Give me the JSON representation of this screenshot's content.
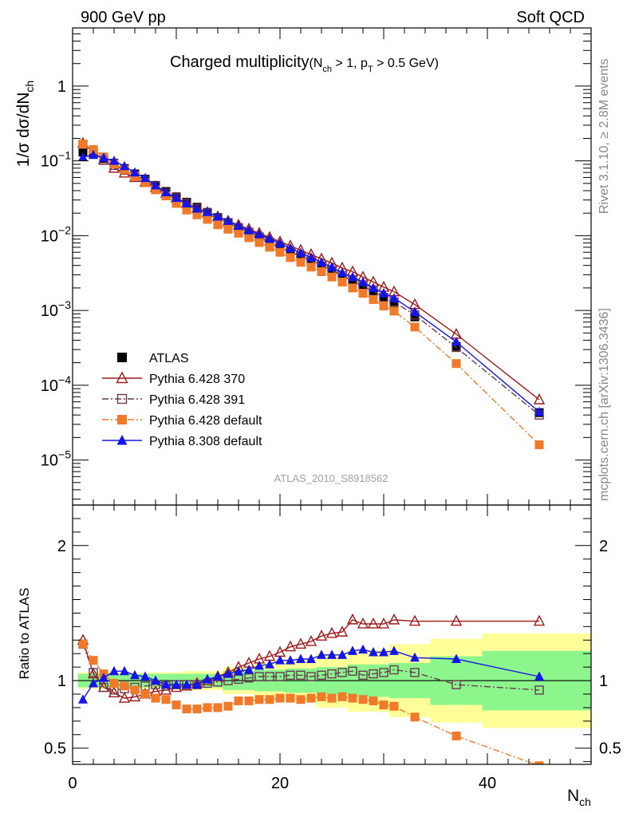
{
  "header": {
    "left": "900 GeV pp",
    "right": "Soft QCD"
  },
  "side": {
    "rivet": "Rivet 3.1.10, ≥ 2.8M events",
    "source": "mcplots.cern.ch [arXiv:1306.3436]"
  },
  "watermark": "ATLAS_2010_S8918562",
  "title": {
    "main": "Charged multiplicity",
    "cond_open": "(N",
    "cond_sub1": "ch",
    "cond_mid": " > 1, p",
    "cond_sub2": "T",
    "cond_close": " > 0.5 GeV)"
  },
  "ylabel": {
    "pre": "1/σ dσ/dN",
    "sub": "ch"
  },
  "ratio_ylabel": "Ratio to ATLAS",
  "xlabel": {
    "main": "N",
    "sub": "ch"
  },
  "chart_data": [
    {
      "type": "scatter",
      "panel": "main",
      "x_range": [
        0,
        50
      ],
      "y_range": [
        2.5e-06,
        6
      ],
      "log_y": true,
      "y_ticks": [
        {
          "value": 1,
          "base": "1",
          "exp": ""
        },
        {
          "value": 0.1,
          "base": "10",
          "exp": "−1"
        },
        {
          "value": 0.01,
          "base": "10",
          "exp": "−2"
        },
        {
          "value": 0.001,
          "base": "10",
          "exp": "−3"
        },
        {
          "value": 0.0001,
          "base": "10",
          "exp": "−4"
        },
        {
          "value": 1e-05,
          "base": "10",
          "exp": "−5"
        }
      ],
      "legend_position": "bottom-left",
      "x": [
        1,
        2,
        3,
        4,
        5,
        6,
        7,
        8,
        9,
        10,
        11,
        12,
        13,
        14,
        15,
        16,
        17,
        18,
        19,
        20,
        21,
        22,
        23,
        24,
        25,
        26,
        27,
        28,
        29,
        30,
        31,
        33,
        37,
        45
      ],
      "series": [
        {
          "name": "ATLAS",
          "color": "#000000",
          "marker": "square-filled",
          "line": "none",
          "values": [
            0.131,
            0.123,
            0.108,
            0.093,
            0.079,
            0.067,
            0.057,
            0.047,
            0.039,
            0.033,
            0.028,
            0.024,
            0.0205,
            0.0175,
            0.015,
            0.0128,
            0.011,
            0.0094,
            0.0081,
            0.0069,
            0.0059,
            0.0051,
            0.0044,
            0.0037,
            0.0032,
            0.0027,
            0.0023,
            0.00195,
            0.00165,
            0.0014,
            0.0012,
            0.00082,
            0.00033,
            4.3e-05
          ]
        },
        {
          "name": "Pythia 6.428 370",
          "color": "#a01818",
          "marker": "triangle-open",
          "line": "solid",
          "values": [
            0.172,
            0.13,
            0.103,
            0.08,
            0.069,
            0.06,
            0.052,
            0.044,
            0.037,
            0.032,
            0.027,
            0.023,
            0.0205,
            0.018,
            0.0157,
            0.0139,
            0.0123,
            0.0108,
            0.0095,
            0.0083,
            0.0073,
            0.0064,
            0.0056,
            0.0049,
            0.0043,
            0.0037,
            0.0033,
            0.0028,
            0.0024,
            0.00205,
            0.00178,
            0.0012,
            0.00048,
            6.4e-05
          ]
        },
        {
          "name": "Pythia 6.428 391",
          "color": "#6a3a50",
          "marker": "square-open",
          "line": "dashdot",
          "values": [
            0.166,
            0.13,
            0.102,
            0.087,
            0.075,
            0.064,
            0.055,
            0.046,
            0.037,
            0.032,
            0.027,
            0.023,
            0.0201,
            0.0172,
            0.0148,
            0.0127,
            0.0111,
            0.0096,
            0.0082,
            0.0071,
            0.0061,
            0.0053,
            0.0046,
            0.0039,
            0.0034,
            0.0029,
            0.0025,
            0.0021,
            0.0018,
            0.0015,
            0.0013,
            0.00087,
            0.00032,
            4e-05
          ]
        },
        {
          "name": "Pythia 6.428 default",
          "color": "#f07a2a",
          "marker": "square-filled",
          "line": "dashdot",
          "values": [
            0.168,
            0.142,
            0.113,
            0.091,
            0.076,
            0.062,
            0.051,
            0.041,
            0.034,
            0.027,
            0.022,
            0.019,
            0.0165,
            0.014,
            0.0122,
            0.0108,
            0.0094,
            0.0081,
            0.007,
            0.006,
            0.0051,
            0.0044,
            0.0038,
            0.0033,
            0.0028,
            0.0024,
            0.002,
            0.0017,
            0.0014,
            0.00115,
            0.00098,
            0.0006,
            0.000195,
            1.6e-05
          ]
        },
        {
          "name": "Pythia 8.308 default",
          "color": "#1515e8",
          "marker": "triangle-filled",
          "line": "solid",
          "values": [
            0.112,
            0.12,
            0.11,
            0.1,
            0.085,
            0.07,
            0.059,
            0.047,
            0.038,
            0.032,
            0.027,
            0.023,
            0.0207,
            0.018,
            0.0158,
            0.0135,
            0.0118,
            0.0104,
            0.0091,
            0.0079,
            0.0068,
            0.0059,
            0.0051,
            0.0044,
            0.0038,
            0.0032,
            0.0028,
            0.0024,
            0.002,
            0.0017,
            0.00146,
            0.00096,
            0.00038,
            4.4e-05
          ]
        }
      ]
    },
    {
      "type": "scatter",
      "panel": "ratio",
      "x_range": [
        0,
        50
      ],
      "y_range": [
        0.38,
        2.3
      ],
      "y_ticks": [
        0.5,
        1,
        2
      ],
      "x_ticks": [
        0,
        20,
        40
      ],
      "reference_line": 1,
      "x": [
        1,
        2,
        3,
        4,
        5,
        6,
        7,
        8,
        9,
        10,
        11,
        12,
        13,
        14,
        15,
        16,
        17,
        18,
        19,
        20,
        21,
        22,
        23,
        24,
        25,
        26,
        27,
        28,
        29,
        30,
        31,
        33,
        37,
        45
      ],
      "band_bins": [
        {
          "lo": 0.5,
          "hi": 10.5,
          "green": 0.05,
          "yellow": 0.06
        },
        {
          "lo": 10.5,
          "hi": 14.5,
          "green": 0.05,
          "yellow": 0.07
        },
        {
          "lo": 14.5,
          "hi": 17.5,
          "green": 0.07,
          "yellow": 0.1
        },
        {
          "lo": 17.5,
          "hi": 20.5,
          "green": 0.08,
          "yellow": 0.13
        },
        {
          "lo": 20.5,
          "hi": 23.5,
          "green": 0.09,
          "yellow": 0.16
        },
        {
          "lo": 23.5,
          "hi": 26.5,
          "green": 0.1,
          "yellow": 0.2
        },
        {
          "lo": 26.5,
          "hi": 30.5,
          "green": 0.12,
          "yellow": 0.23
        },
        {
          "lo": 30.5,
          "hi": 34.5,
          "green": 0.13,
          "yellow": 0.27
        },
        {
          "lo": 34.5,
          "hi": 39.5,
          "green": 0.18,
          "yellow": 0.31
        },
        {
          "lo": 39.5,
          "hi": 50.0,
          "green": 0.22,
          "yellow": 0.35
        }
      ],
      "band_colors": {
        "green": "#8cf58c",
        "yellow": "#ffff99"
      },
      "series": [
        {
          "name": "Pythia 6.428 370",
          "color": "#a01818",
          "marker": "triangle-open",
          "line": "solid",
          "values": [
            1.3,
            1.05,
            0.95,
            0.91,
            0.87,
            0.88,
            0.9,
            0.92,
            0.93,
            0.95,
            0.96,
            0.98,
            1.0,
            1.03,
            1.06,
            1.1,
            1.13,
            1.16,
            1.18,
            1.21,
            1.25,
            1.27,
            1.29,
            1.33,
            1.35,
            1.36,
            1.45,
            1.42,
            1.42,
            1.42,
            1.45,
            1.44,
            1.44,
            1.44
          ]
        },
        {
          "name": "Pythia 6.428 391",
          "color": "#6a3a50",
          "marker": "square-open",
          "line": "dashdot",
          "values": [
            1.27,
            1.06,
            0.95,
            0.93,
            0.94,
            0.95,
            0.96,
            0.97,
            0.96,
            0.97,
            0.97,
            0.97,
            0.98,
            0.99,
            1.0,
            1.01,
            1.02,
            1.03,
            1.03,
            1.03,
            1.04,
            1.04,
            1.03,
            1.04,
            1.05,
            1.06,
            1.07,
            1.04,
            1.05,
            1.06,
            1.08,
            1.06,
            0.97,
            0.93
          ]
        },
        {
          "name": "Pythia 6.428 default",
          "color": "#f07a2a",
          "marker": "square-filled",
          "line": "dashdot",
          "values": [
            1.27,
            1.15,
            1.05,
            0.98,
            0.96,
            0.93,
            0.9,
            0.87,
            0.86,
            0.82,
            0.79,
            0.79,
            0.8,
            0.8,
            0.81,
            0.85,
            0.85,
            0.86,
            0.86,
            0.87,
            0.87,
            0.86,
            0.87,
            0.88,
            0.87,
            0.88,
            0.87,
            0.86,
            0.85,
            0.82,
            0.81,
            0.73,
            0.59,
            0.37
          ]
        },
        {
          "name": "Pythia 8.308 default",
          "color": "#1515e8",
          "marker": "triangle-filled",
          "line": "solid",
          "values": [
            0.86,
            0.98,
            1.02,
            1.07,
            1.07,
            1.04,
            1.03,
            1.0,
            0.97,
            0.97,
            0.97,
            0.97,
            1.01,
            1.03,
            1.05,
            1.07,
            1.08,
            1.11,
            1.12,
            1.15,
            1.15,
            1.16,
            1.16,
            1.19,
            1.19,
            1.19,
            1.22,
            1.23,
            1.21,
            1.21,
            1.22,
            1.17,
            1.16,
            1.03
          ]
        }
      ]
    }
  ]
}
